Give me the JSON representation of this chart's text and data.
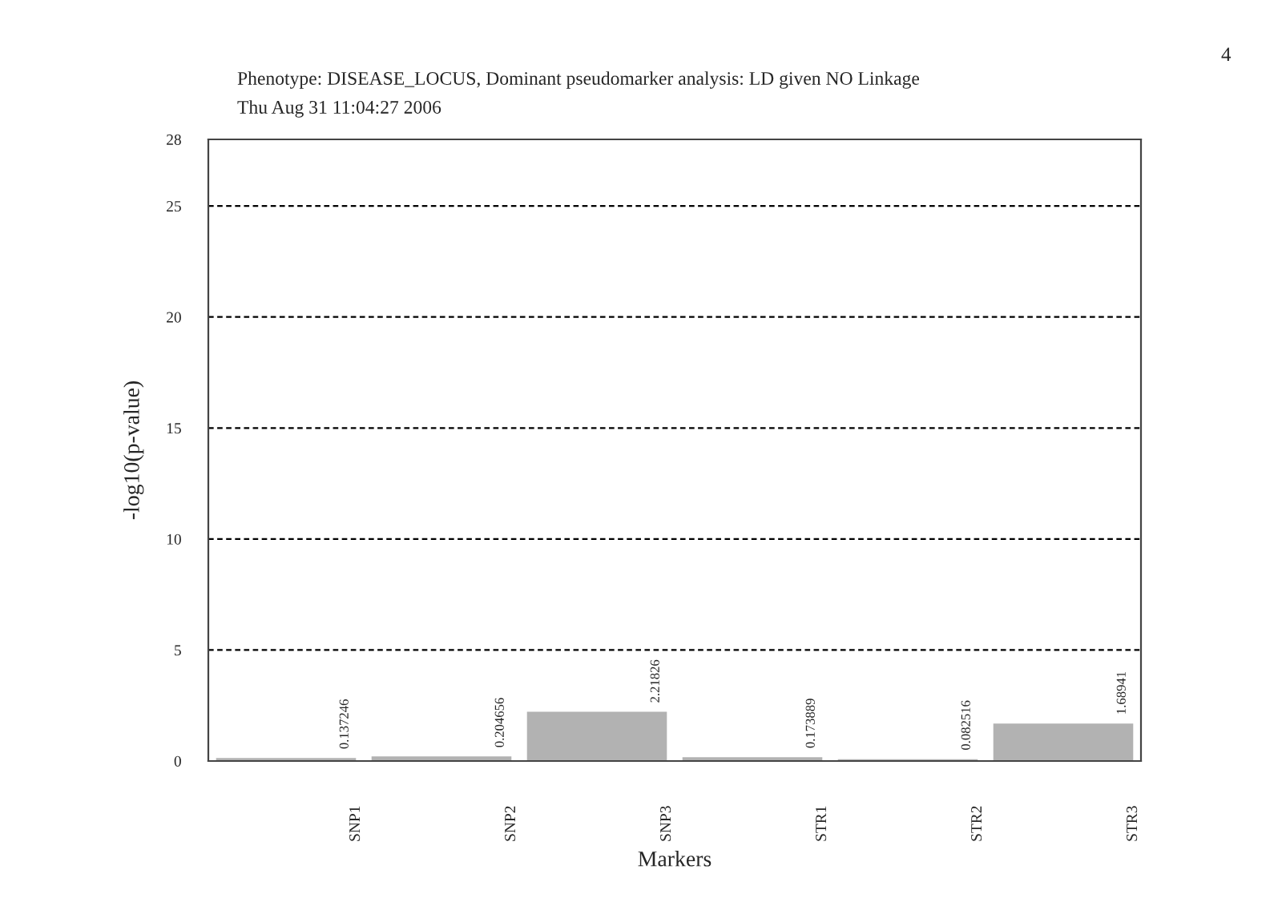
{
  "chart_data": {
    "type": "bar",
    "title": "Phenotype: DISEASE_LOCUS, Dominant pseudomarker analysis: LD given NO Linkage",
    "subtitle": "Thu Aug 31 11:04:27 2006",
    "annotations": [
      "4"
    ],
    "xlabel": "Markers",
    "ylabel": "-log10(p-value)",
    "categories": [
      "SNP1",
      "SNP2",
      "SNP3",
      "STR1",
      "STR2",
      "STR3"
    ],
    "values": [
      0.137246,
      0.204656,
      2.21826,
      0.173889,
      0.082516,
      1.68941
    ],
    "color": "#b2b2b2",
    "data_labels": true,
    "ylim": [
      0,
      28
    ],
    "yticks": [
      0,
      5,
      10,
      15,
      20,
      25,
      28
    ],
    "grid": "y"
  }
}
